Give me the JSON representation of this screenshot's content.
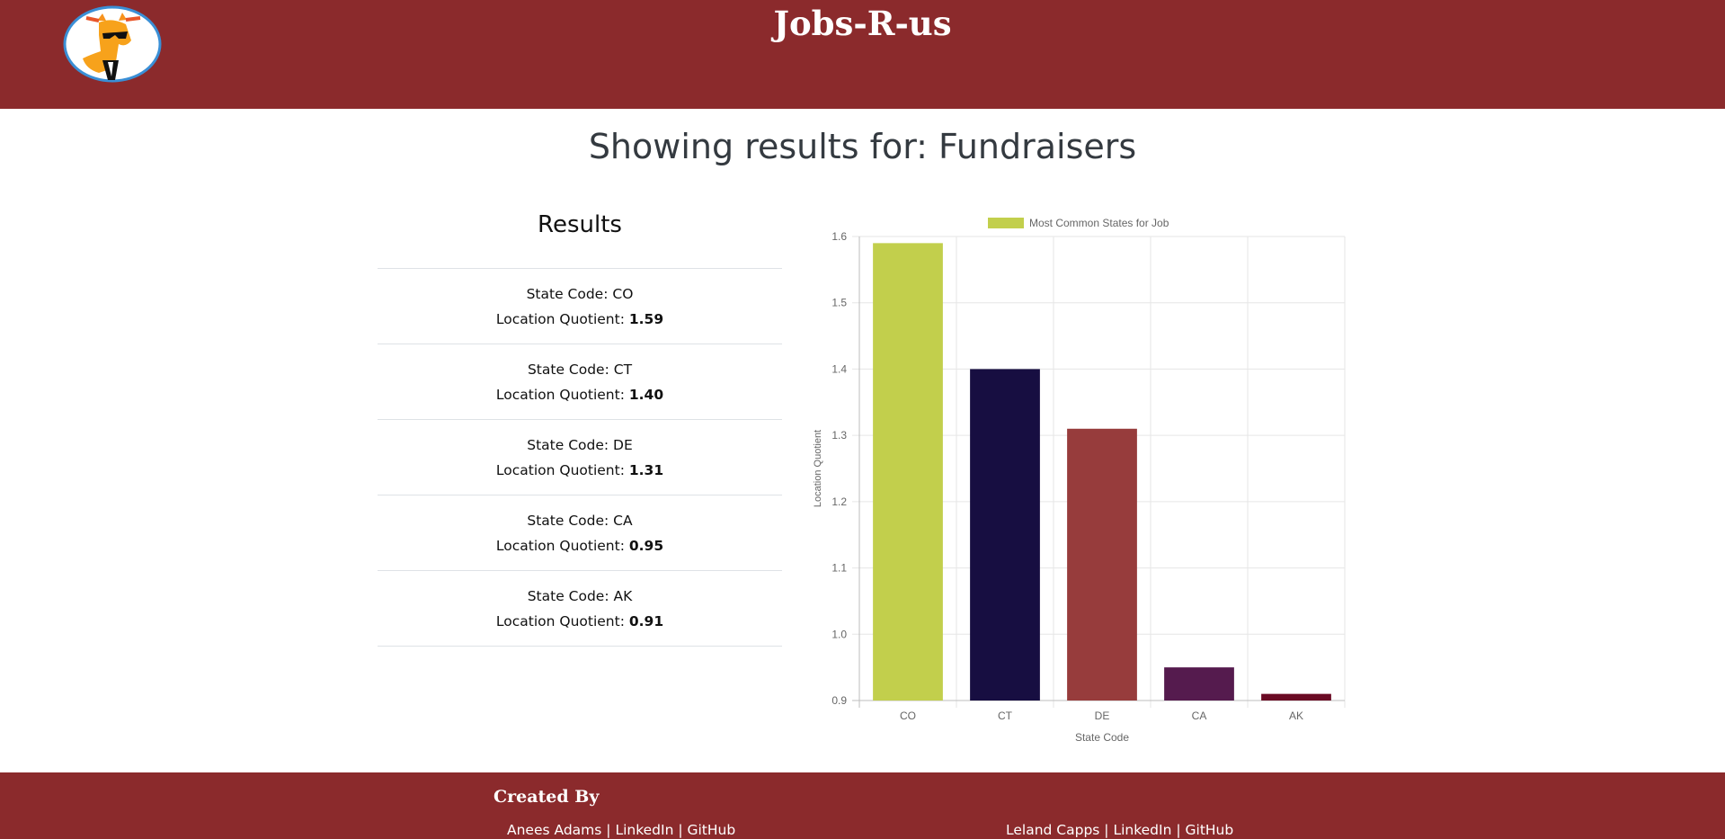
{
  "header": {
    "site_title": "Jobs-R-us",
    "logo_icon": "giraffe-sunglasses-logo-icon"
  },
  "page": {
    "heading": "Showing results for: Fundraisers"
  },
  "results": {
    "title": "Results",
    "state_prefix": "State Code: ",
    "lq_prefix": "Location Quotient: ",
    "items": [
      {
        "state": "CO",
        "lq": "1.59"
      },
      {
        "state": "CT",
        "lq": "1.40"
      },
      {
        "state": "DE",
        "lq": "1.31"
      },
      {
        "state": "CA",
        "lq": "0.95"
      },
      {
        "state": "AK",
        "lq": "0.91"
      }
    ]
  },
  "chart_data": {
    "type": "bar",
    "title": "",
    "legend": {
      "label": "Most Common States for Job",
      "position": "top",
      "color": "#c2cf4c"
    },
    "categories": [
      "CO",
      "CT",
      "DE",
      "CA",
      "AK"
    ],
    "values": [
      1.59,
      1.4,
      1.31,
      0.95,
      0.91
    ],
    "colors": [
      "#c2cf4c",
      "#170e41",
      "#973c3c",
      "#551b4e",
      "#6a0a24"
    ],
    "xlabel": "State Code",
    "ylabel": "Location Quotient",
    "ylim": [
      0.9,
      1.6
    ],
    "yticks": [
      "1.6",
      "1.5",
      "1.4",
      "1.3",
      "1.2",
      "1.1",
      "1.0",
      "0.9"
    ],
    "grid": true
  },
  "footer": {
    "title": "Created By",
    "credits": [
      {
        "name": "Anees Adams",
        "sep1": " | ",
        "link1": "LinkedIn",
        "sep2": " | ",
        "link2": "GitHub"
      },
      {
        "name": "Leland Capps",
        "sep1": " | ",
        "link1": "LinkedIn",
        "sep2": " | ",
        "link2": "GitHub"
      }
    ]
  },
  "colors": {
    "brand": "#8b2a2c",
    "text": "#212529"
  }
}
